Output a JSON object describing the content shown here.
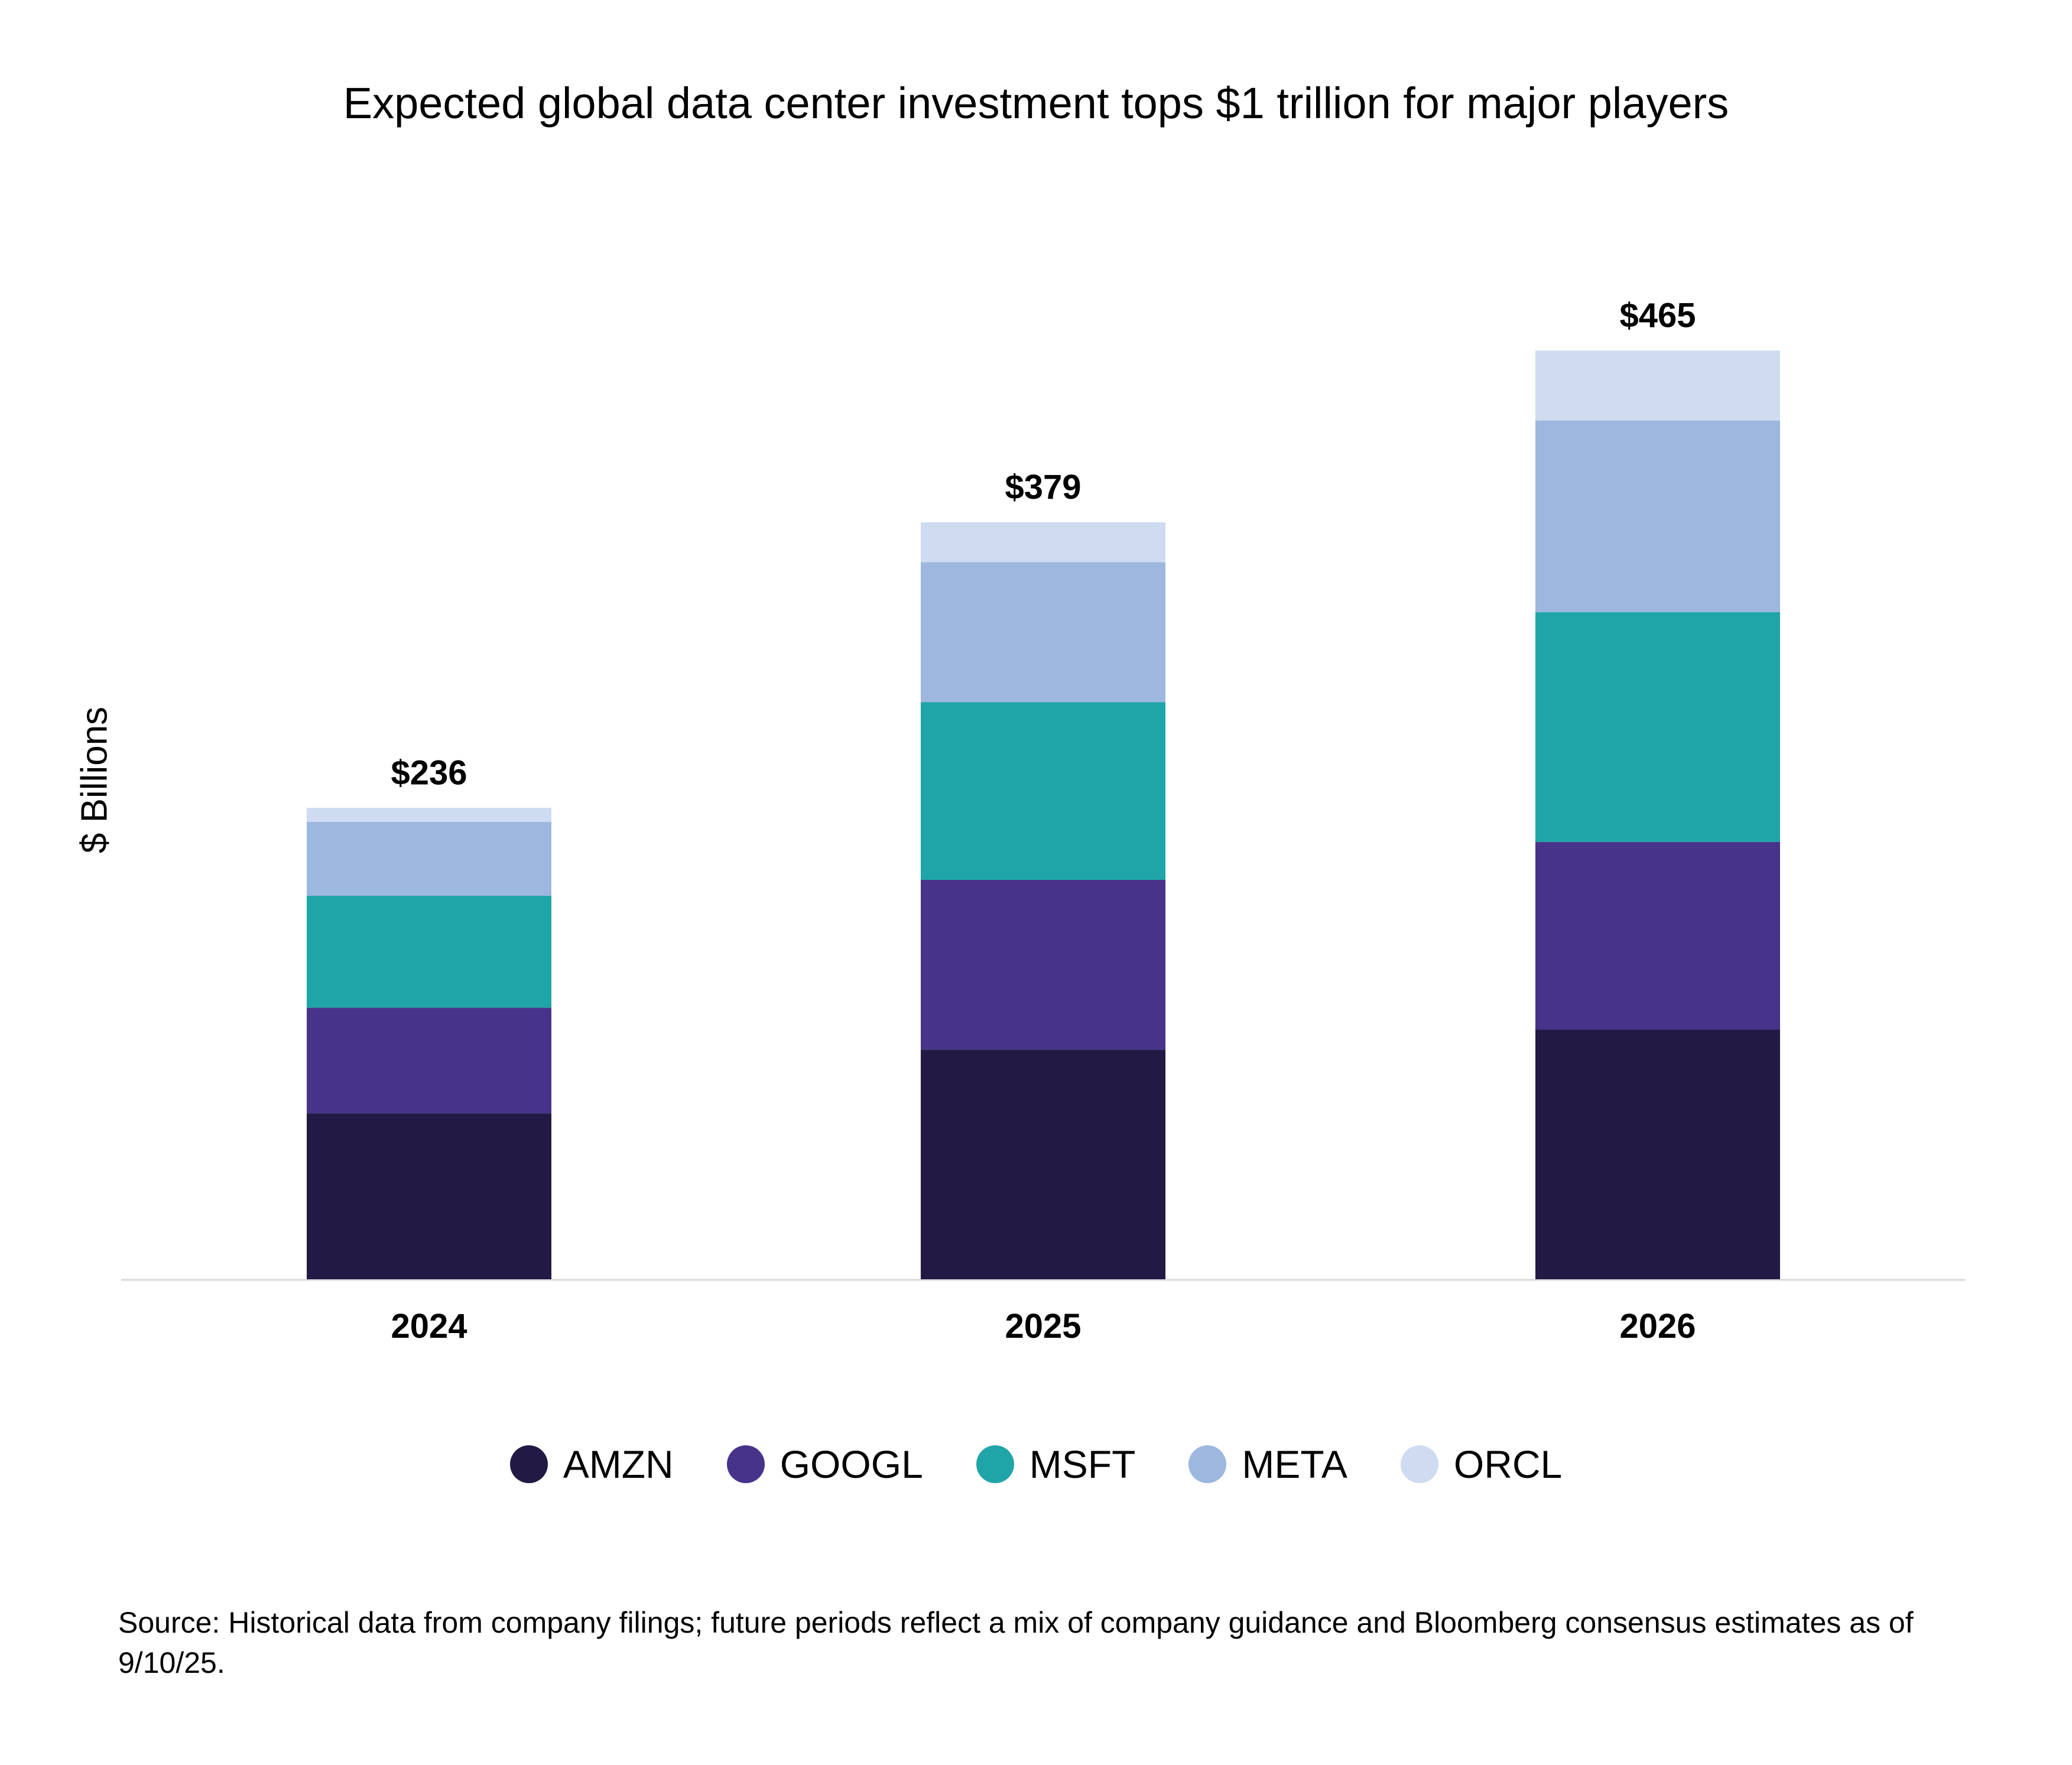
{
  "chart_data": {
    "type": "bar",
    "stacked": true,
    "title": "Expected global data center investment tops $1 trillion for major players",
    "xlabel": "",
    "ylabel": "$ Billions",
    "categories": [
      "2024",
      "2025",
      "2026"
    ],
    "ylim": [
      0,
      500
    ],
    "grid": false,
    "legend_position": "bottom",
    "series": [
      {
        "name": "AMZN",
        "color": "#221a44",
        "values": [
          83,
          115,
          125
        ]
      },
      {
        "name": "GOOGL",
        "color": "#47348a",
        "values": [
          53,
          85,
          94
        ]
      },
      {
        "name": "MSFT",
        "color": "#1fa5a8",
        "values": [
          56,
          89,
          115
        ]
      },
      {
        "name": "META",
        "color": "#9db7df",
        "values": [
          37,
          70,
          96
        ]
      },
      {
        "name": "ORCL",
        "color": "#cedbf1",
        "values": [
          7,
          20,
          35
        ]
      }
    ],
    "totals": [
      236,
      379,
      465
    ],
    "total_labels": [
      "$236",
      "$379",
      "$465"
    ]
  },
  "source": "Source: Historical data from company filings; future periods reflect a mix of company guidance and Bloomberg consensus estimates as of 9/10/25."
}
